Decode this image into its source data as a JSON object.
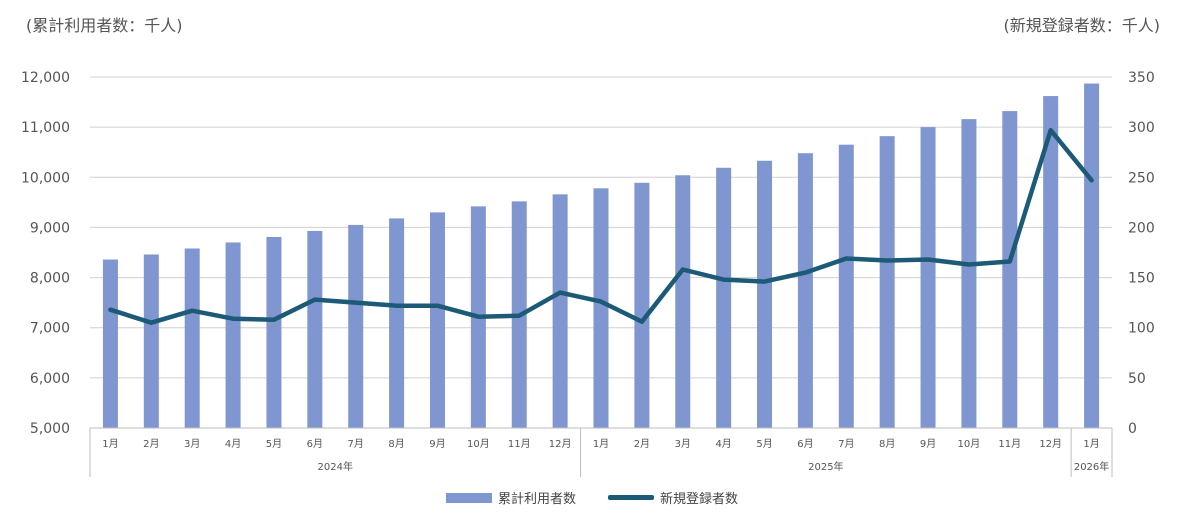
{
  "header": {
    "left_unit": "(累計利用者数：千人)",
    "right_unit": "(新規登録者数：千人)"
  },
  "legend": {
    "bar_label": "累計利用者数",
    "line_label": "新規登録者数"
  },
  "colors": {
    "bar": "#7f96d0",
    "line": "#1c5a78",
    "grid": "#d0d0d0",
    "axis_text": "#555555"
  },
  "chart_data": {
    "type": "bar+line",
    "categories": [
      "1月",
      "2月",
      "3月",
      "4月",
      "5月",
      "6月",
      "7月",
      "8月",
      "9月",
      "10月",
      "11月",
      "12月",
      "1月",
      "2月",
      "3月",
      "4月",
      "5月",
      "6月",
      "7月",
      "8月",
      "9月",
      "10月",
      "11月",
      "12月",
      "1月"
    ],
    "year_groups": [
      {
        "label": "2024年",
        "count": 12
      },
      {
        "label": "2025年",
        "count": 12
      },
      {
        "label": "2026年",
        "count": 1
      }
    ],
    "series": [
      {
        "name": "累計利用者数",
        "axis": "left",
        "type": "bar",
        "values": [
          8360,
          8460,
          8580,
          8700,
          8810,
          8930,
          9050,
          9180,
          9300,
          9420,
          9520,
          9660,
          9780,
          9890,
          10040,
          10190,
          10330,
          10480,
          10650,
          10820,
          11000,
          11160,
          11320,
          11620,
          11870
        ]
      },
      {
        "name": "新規登録者数",
        "axis": "right",
        "type": "line",
        "values": [
          118,
          105,
          117,
          109,
          108,
          128,
          125,
          122,
          122,
          111,
          112,
          135,
          126,
          106,
          158,
          148,
          146,
          155,
          169,
          167,
          168,
          163,
          166,
          297,
          247
        ]
      }
    ],
    "y_left": {
      "min": 5000,
      "max": 12000,
      "ticks": [
        "5,000",
        "6,000",
        "7,000",
        "8,000",
        "9,000",
        "10,000",
        "11,000",
        "12,000"
      ]
    },
    "y_right": {
      "min": 0,
      "max": 350,
      "ticks": [
        "0",
        "50",
        "100",
        "150",
        "200",
        "250",
        "300",
        "350"
      ]
    },
    "grid": true,
    "legend_position": "bottom"
  }
}
